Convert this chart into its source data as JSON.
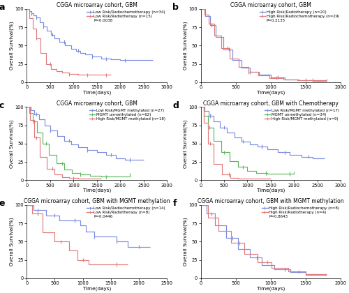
{
  "panels": [
    {
      "label": "a",
      "title": "CGGA microarray cohort, GBM",
      "xlim": [
        0,
        3000
      ],
      "xticks": [
        0,
        500,
        1000,
        1500,
        2000,
        2500,
        3000
      ],
      "ylim": [
        0,
        100
      ],
      "yticks": [
        0,
        25,
        50,
        75,
        100
      ],
      "xlabel": "Time(days)",
      "ylabel": "Overall Survival(%)",
      "legend_texts": [
        "Low Risk/Radiochemotherapy (n=34)",
        "Low Risk/Radiotherapy (n=15)"
      ],
      "pvalue": "P=0.0038",
      "curves": [
        {
          "color": "#7b8cde",
          "times": [
            0,
            50,
            100,
            150,
            200,
            280,
            350,
            430,
            520,
            600,
            700,
            820,
            950,
            1050,
            1150,
            1250,
            1400,
            1600,
            1800,
            2000,
            2200,
            2600,
            2700
          ],
          "survival": [
            100,
            97,
            94,
            91,
            88,
            82,
            76,
            70,
            65,
            60,
            55,
            50,
            46,
            43,
            40,
            38,
            35,
            32,
            31,
            30,
            30,
            30,
            30
          ],
          "censors": [
            100,
            200,
            350,
            550,
            800,
            1100,
            1400,
            1700,
            2100
          ]
        },
        {
          "color": "#e07b7b",
          "times": [
            0,
            60,
            130,
            200,
            300,
            420,
            520,
            640,
            750,
            900,
            1100,
            1300,
            1500,
            1700,
            1800
          ],
          "survival": [
            100,
            87,
            73,
            60,
            40,
            25,
            18,
            15,
            13,
            11,
            10,
            10,
            10,
            10,
            10
          ],
          "censors": [
            200,
            500,
            900,
            1300,
            1700
          ]
        }
      ]
    },
    {
      "label": "b",
      "title": "CGGA microarray cohort, GBM",
      "xlim": [
        0,
        2000
      ],
      "xticks": [
        0,
        500,
        1000,
        1500,
        2000
      ],
      "ylim": [
        0,
        100
      ],
      "yticks": [
        0,
        25,
        50,
        75,
        100
      ],
      "xlabel": "Time(days)",
      "ylabel": "Overall Survival(%)",
      "legend_texts": [
        "High Risk/Radiotherapy (n=20)",
        "High Risk/Radiochemotherapy (n=29)"
      ],
      "pvalue": "P=0.2135",
      "curves": [
        {
          "color": "#7b8cde",
          "times": [
            0,
            60,
            130,
            210,
            320,
            450,
            580,
            700,
            830,
            1000,
            1200,
            1400,
            1600,
            1800
          ],
          "survival": [
            100,
            90,
            78,
            62,
            45,
            30,
            20,
            14,
            10,
            7,
            4,
            3,
            2,
            2
          ],
          "censors": [
            150,
            400,
            700,
            1100,
            1500
          ]
        },
        {
          "color": "#e07b7b",
          "times": [
            0,
            50,
            110,
            190,
            290,
            410,
            540,
            680,
            820,
            980,
            1180,
            1380,
            1600,
            1800
          ],
          "survival": [
            100,
            92,
            80,
            64,
            47,
            32,
            21,
            14,
            9,
            6,
            4,
            3,
            3,
            5
          ],
          "censors": [
            130,
            380,
            680,
            1080,
            1600
          ]
        }
      ]
    },
    {
      "label": "c",
      "title": "CGGA microarray cohort, GBM",
      "xlim": [
        0,
        3000
      ],
      "xticks": [
        0,
        500,
        1000,
        1500,
        2000,
        2500,
        3000
      ],
      "ylim": [
        0,
        100
      ],
      "yticks": [
        0,
        25,
        50,
        75,
        100
      ],
      "xlabel": "Time(days)",
      "ylabel": "Overall Survival(%)",
      "legend_texts": [
        "Low Risk/MGMT methylated (n=27)",
        "MGMT unmethylated (n=62)",
        "High Risk/MGMT methylated (n=18)"
      ],
      "pvalue": null,
      "curves": [
        {
          "color": "#7b8cde",
          "times": [
            0,
            80,
            160,
            260,
            380,
            500,
            650,
            800,
            950,
            1100,
            1300,
            1500,
            1700,
            1900,
            2100,
            2300,
            2500
          ],
          "survival": [
            100,
            96,
            90,
            83,
            75,
            68,
            60,
            54,
            49,
            45,
            41,
            38,
            35,
            30,
            28,
            28,
            28
          ],
          "censors": [
            200,
            500,
            900,
            1300,
            1800,
            2200
          ]
        },
        {
          "color": "#5cb85c",
          "times": [
            0,
            60,
            130,
            220,
            340,
            480,
            640,
            800,
            970,
            1150,
            1350,
            1600,
            1900,
            2200
          ],
          "survival": [
            100,
            92,
            80,
            65,
            50,
            35,
            23,
            15,
            10,
            8,
            6,
            5,
            5,
            10
          ],
          "censors": [
            150,
            420,
            750,
            1150,
            1700
          ]
        },
        {
          "color": "#e07b7b",
          "times": [
            0,
            70,
            160,
            280,
            430,
            600,
            750,
            900,
            1100,
            1350,
            1600
          ],
          "survival": [
            100,
            82,
            58,
            32,
            16,
            8,
            4,
            3,
            2,
            2,
            2
          ],
          "censors": [
            200,
            550,
            1000
          ]
        }
      ]
    },
    {
      "label": "d",
      "title": "CGGA microarray cohort, GBM with Chemotherapy",
      "xlim": [
        0,
        3000
      ],
      "xticks": [
        0,
        500,
        1000,
        1500,
        2000,
        2500,
        3000
      ],
      "ylim": [
        0,
        100
      ],
      "yticks": [
        0,
        25,
        50,
        75,
        100
      ],
      "xlabel": "Time(days)",
      "ylabel": "Overall Survival(%)",
      "legend_texts": [
        "Low Risk/MGMT methylated (n=17)",
        "MGMT unmethylated (n=34)",
        "High Risk/MGMT methylated (n=9)"
      ],
      "pvalue": null,
      "curves": [
        {
          "color": "#7b8cde",
          "times": [
            0,
            80,
            170,
            280,
            410,
            560,
            720,
            880,
            1050,
            1220,
            1420,
            1650,
            1900,
            2150,
            2400,
            2650
          ],
          "survival": [
            100,
            95,
            88,
            80,
            72,
            65,
            58,
            53,
            49,
            46,
            42,
            38,
            35,
            32,
            30,
            30
          ],
          "censors": [
            200,
            500,
            900,
            1300,
            1800,
            2300
          ]
        },
        {
          "color": "#5cb85c",
          "times": [
            0,
            70,
            160,
            280,
            440,
            620,
            800,
            990,
            1190,
            1430,
            1700,
            2000
          ],
          "survival": [
            100,
            88,
            72,
            54,
            38,
            26,
            18,
            13,
            10,
            9,
            9,
            12
          ],
          "censors": [
            180,
            500,
            900,
            1400,
            1900
          ]
        },
        {
          "color": "#e07b7b",
          "times": [
            0,
            60,
            150,
            280,
            450,
            640,
            800,
            980,
            1200,
            1500
          ],
          "survival": [
            100,
            78,
            50,
            22,
            8,
            3,
            2,
            2,
            2,
            2
          ],
          "censors": [
            200,
            600
          ]
        }
      ]
    },
    {
      "label": "e",
      "title": "CGGA microarray cohort, GBM with MGMT methylation",
      "xlim": [
        0,
        2500
      ],
      "xticks": [
        0,
        500,
        1000,
        1500,
        2000,
        2500
      ],
      "ylim": [
        0,
        100
      ],
      "yticks": [
        0,
        25,
        50,
        75,
        100
      ],
      "xlabel": "Time(days)",
      "ylabel": "Overall Survival(%)",
      "legend_texts": [
        "Low Risk/Radiochemotherapy (n=14)",
        "Low Risk/Radiotherapy (n=8)"
      ],
      "pvalue": "P=0.0446",
      "curves": [
        {
          "color": "#7b8cde",
          "times": [
            0,
            120,
            350,
            580,
            780,
            960,
            1050,
            1200,
            1600,
            1800,
            2000,
            2200
          ],
          "survival": [
            100,
            93,
            86,
            79,
            79,
            72,
            64,
            57,
            50,
            43,
            43,
            43
          ],
          "censors": [
            200,
            500,
            850,
            1200,
            1600,
            2000
          ]
        },
        {
          "color": "#e07b7b",
          "times": [
            0,
            90,
            280,
            500,
            750,
            900,
            1100,
            1350,
            1650,
            1800
          ],
          "survival": [
            100,
            88,
            63,
            50,
            38,
            25,
            19,
            19,
            19,
            19
          ],
          "censors": [
            200,
            600,
            1000,
            1600
          ]
        }
      ]
    },
    {
      "label": "f",
      "title": "CGGA microarray cohort, GBM with MGMT methylation",
      "xlim": [
        0,
        2000
      ],
      "xticks": [
        0,
        500,
        1000,
        1500,
        2000
      ],
      "ylim": [
        0,
        100
      ],
      "yticks": [
        0,
        25,
        50,
        75,
        100
      ],
      "xlabel": "Time(days)",
      "ylabel": "Overall Survival(%)",
      "legend_texts": [
        "High Risk/Radiochemotherapy (n=8)",
        "High Risk/Radiotherapy (n=4)"
      ],
      "pvalue": "P=0.8643",
      "curves": [
        {
          "color": "#7b8cde",
          "times": [
            0,
            80,
            200,
            360,
            530,
            700,
            870,
            1050,
            1280,
            1500,
            1800
          ],
          "survival": [
            100,
            88,
            72,
            55,
            40,
            28,
            18,
            12,
            8,
            5,
            5
          ],
          "censors": [
            150,
            450,
            800,
            1200
          ]
        },
        {
          "color": "#e07b7b",
          "times": [
            0,
            100,
            250,
            430,
            620,
            810,
            1010,
            1250,
            1500,
            1800
          ],
          "survival": [
            100,
            83,
            65,
            48,
            33,
            22,
            14,
            9,
            6,
            6
          ],
          "censors": [
            200,
            550,
            950,
            1400
          ]
        }
      ]
    }
  ]
}
